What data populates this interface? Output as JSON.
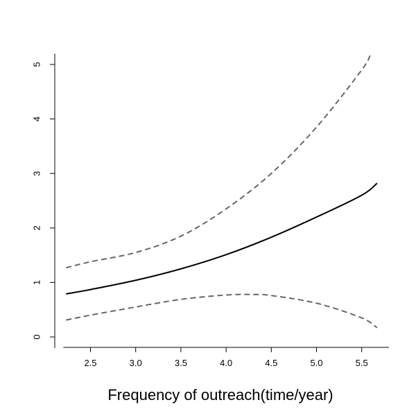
{
  "chart_data": {
    "type": "line",
    "title": "",
    "xlabel": "Frequency of outreach(time/year)",
    "ylabel": "",
    "xlim": [
      2.2,
      5.7
    ],
    "ylim": [
      0,
      5.2
    ],
    "x_ticks": [
      2.5,
      3.0,
      3.5,
      4.0,
      4.5,
      5.0,
      5.5
    ],
    "x_tick_labels": [
      "2.5",
      "3.0",
      "3.5",
      "4.0",
      "4.5",
      "5.0",
      "5.5"
    ],
    "y_ticks": [
      0,
      1,
      2,
      3,
      4,
      5
    ],
    "y_tick_labels": [
      "0",
      "1",
      "2",
      "3",
      "4",
      "5"
    ],
    "grid": false,
    "legend": "none",
    "series": [
      {
        "role": "estimate",
        "style": "solid",
        "color": "#000000",
        "x": [
          2.23,
          2.5,
          3.0,
          3.5,
          4.0,
          4.5,
          5.0,
          5.5,
          5.67
        ],
        "y": [
          0.79,
          0.87,
          1.04,
          1.25,
          1.51,
          1.83,
          2.2,
          2.6,
          2.82
        ]
      },
      {
        "role": "upper",
        "style": "dashed",
        "color": "#666666",
        "x": [
          2.23,
          2.5,
          3.0,
          3.5,
          4.0,
          4.5,
          5.0,
          5.5,
          5.6
        ],
        "y": [
          1.27,
          1.38,
          1.55,
          1.85,
          2.35,
          3.0,
          3.85,
          4.9,
          5.2
        ]
      },
      {
        "role": "lower",
        "style": "dashed",
        "color": "#666666",
        "x": [
          2.23,
          2.5,
          3.0,
          3.5,
          4.0,
          4.3,
          4.5,
          5.0,
          5.5,
          5.67
        ],
        "y": [
          0.31,
          0.4,
          0.55,
          0.69,
          0.77,
          0.78,
          0.76,
          0.62,
          0.35,
          0.17
        ]
      }
    ]
  }
}
